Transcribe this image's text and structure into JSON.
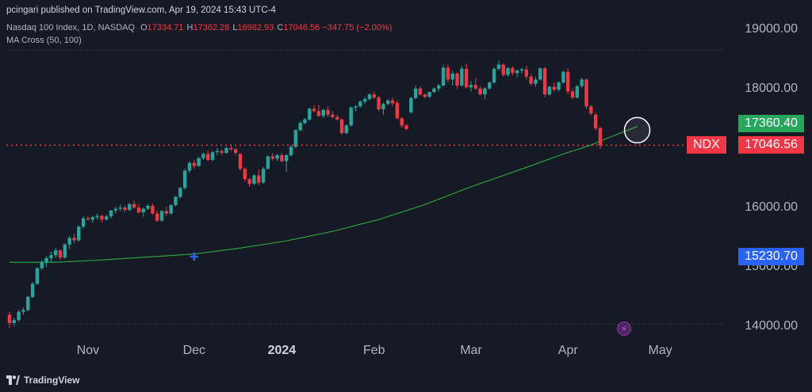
{
  "header": {
    "publisher": "pcingari published on TradingView.com, Apr 19, 2024 15:43 UTC-4",
    "symbol_line": "Nasdaq 100 Index, 1D, NASDAQ",
    "ohlc": [
      {
        "label": "O",
        "value": "17334.71"
      },
      {
        "label": "H",
        "value": "17362.28"
      },
      {
        "label": "L",
        "value": "16982.93"
      },
      {
        "label": "C",
        "value": "17046.56"
      }
    ],
    "change": "−347.75 (−2.00%)",
    "indicator": "MA Cross (50, 100)"
  },
  "price_tags": {
    "ma_value": "17360.40",
    "ma_color": "#26A65B",
    "last_value": "17046.56",
    "last_color": "#F23645",
    "symbol": "NDX",
    "ma_low_value": "15230.70",
    "ma_low_color": "#2962FF"
  },
  "footer": {
    "brand": "TradingView"
  },
  "icons": {
    "alert": "lightning-icon",
    "logo": "tradingview-logo-icon",
    "cross": "ma-cross-marker-icon"
  },
  "colors": {
    "up": "#26A69A",
    "down": "#F23645",
    "ma": "#2E9D3F",
    "grid": "#2A2E39",
    "bg": "#161A25"
  },
  "chart_data": {
    "type": "candlestick",
    "y_axis": {
      "range": [
        13900,
        19300
      ],
      "ticks": [
        14000,
        15000,
        16000,
        17000,
        18000,
        19000
      ],
      "tick_labels": [
        "14000.00",
        "15000.00",
        "16000.00",
        "17000.00",
        "18000.00",
        "19000.00"
      ]
    },
    "x_axis": {
      "tick_labels": [
        {
          "label": "Nov",
          "bold": false
        },
        {
          "label": "Dec",
          "bold": false
        },
        {
          "label": "2024",
          "bold": true
        },
        {
          "label": "Feb",
          "bold": false
        },
        {
          "label": "Mar",
          "bold": false
        },
        {
          "label": "Apr",
          "bold": false
        },
        {
          "label": "May",
          "bold": false
        }
      ],
      "tick_bar_index": [
        17,
        40,
        59,
        79,
        100,
        121,
        141
      ]
    },
    "last_price_line": 17046.56,
    "candles": [
      [
        14200,
        14250,
        13980,
        14060
      ],
      [
        14060,
        14150,
        14000,
        14110
      ],
      [
        14110,
        14280,
        14080,
        14250
      ],
      [
        14250,
        14320,
        14200,
        14280
      ],
      [
        14280,
        14520,
        14260,
        14500
      ],
      [
        14500,
        14750,
        14480,
        14720
      ],
      [
        14720,
        15000,
        14700,
        14980
      ],
      [
        14980,
        15120,
        14950,
        15080
      ],
      [
        15080,
        15180,
        15000,
        15150
      ],
      [
        15150,
        15260,
        15080,
        15200
      ],
      [
        15200,
        15320,
        15150,
        15280
      ],
      [
        15280,
        15300,
        15120,
        15160
      ],
      [
        15160,
        15400,
        15140,
        15380
      ],
      [
        15380,
        15520,
        15300,
        15490
      ],
      [
        15490,
        15560,
        15400,
        15450
      ],
      [
        15450,
        15700,
        15430,
        15680
      ],
      [
        15680,
        15850,
        15650,
        15820
      ],
      [
        15820,
        15860,
        15780,
        15800
      ],
      [
        15800,
        15860,
        15750,
        15840
      ],
      [
        15840,
        15900,
        15800,
        15860
      ],
      [
        15860,
        15880,
        15750,
        15800
      ],
      [
        15800,
        15880,
        15780,
        15850
      ],
      [
        15850,
        15960,
        15820,
        15950
      ],
      [
        15950,
        16020,
        15900,
        15980
      ],
      [
        15980,
        16050,
        15940,
        16000
      ],
      [
        16000,
        16040,
        15920,
        15960
      ],
      [
        15960,
        16080,
        15940,
        16060
      ],
      [
        16060,
        16120,
        15980,
        16000
      ],
      [
        16000,
        16060,
        15900,
        15920
      ],
      [
        15920,
        16000,
        15850,
        15980
      ],
      [
        15980,
        16060,
        15960,
        16030
      ],
      [
        16030,
        16070,
        15880,
        15900
      ],
      [
        15900,
        15950,
        15760,
        15780
      ],
      [
        15780,
        15960,
        15760,
        15940
      ],
      [
        15940,
        16020,
        15860,
        15900
      ],
      [
        15900,
        16060,
        15880,
        16040
      ],
      [
        16040,
        16200,
        16020,
        16180
      ],
      [
        16180,
        16350,
        16150,
        16330
      ],
      [
        16330,
        16650,
        16300,
        16620
      ],
      [
        16620,
        16780,
        16580,
        16750
      ],
      [
        16750,
        16800,
        16650,
        16700
      ],
      [
        16700,
        16850,
        16680,
        16830
      ],
      [
        16830,
        16920,
        16800,
        16900
      ],
      [
        16900,
        16960,
        16780,
        16800
      ],
      [
        16800,
        16950,
        16780,
        16930
      ],
      [
        16930,
        17000,
        16880,
        16950
      ],
      [
        16950,
        16980,
        16880,
        16920
      ],
      [
        16920,
        17020,
        16900,
        17000
      ],
      [
        17000,
        17060,
        16950,
        16980
      ],
      [
        16980,
        17000,
        16880,
        16920
      ],
      [
        16900,
        16920,
        16620,
        16650
      ],
      [
        16650,
        16680,
        16440,
        16480
      ],
      [
        16480,
        16500,
        16350,
        16400
      ],
      [
        16400,
        16560,
        16380,
        16540
      ],
      [
        16540,
        16640,
        16380,
        16420
      ],
      [
        16420,
        16680,
        16400,
        16650
      ],
      [
        16650,
        16880,
        16640,
        16860
      ],
      [
        16860,
        16920,
        16780,
        16820
      ],
      [
        16820,
        16900,
        16780,
        16880
      ],
      [
        16880,
        16920,
        16760,
        16780
      ],
      [
        16780,
        16900,
        16600,
        16880
      ],
      [
        16880,
        17050,
        16860,
        17020
      ],
      [
        17020,
        17320,
        17000,
        17300
      ],
      [
        17300,
        17450,
        17280,
        17420
      ],
      [
        17420,
        17500,
        17400,
        17480
      ],
      [
        17480,
        17680,
        17460,
        17660
      ],
      [
        17660,
        17720,
        17600,
        17620
      ],
      [
        17620,
        17720,
        17520,
        17540
      ],
      [
        17540,
        17660,
        17500,
        17640
      ],
      [
        17640,
        17700,
        17520,
        17560
      ],
      [
        17560,
        17620,
        17500,
        17520
      ],
      [
        17520,
        17560,
        17460,
        17480
      ],
      [
        17480,
        17500,
        17220,
        17250
      ],
      [
        17250,
        17400,
        17230,
        17380
      ],
      [
        17380,
        17700,
        17360,
        17680
      ],
      [
        17680,
        17720,
        17620,
        17700
      ],
      [
        17700,
        17800,
        17680,
        17780
      ],
      [
        17780,
        17860,
        17740,
        17820
      ],
      [
        17820,
        17920,
        17800,
        17900
      ],
      [
        17900,
        17950,
        17820,
        17850
      ],
      [
        17850,
        17880,
        17620,
        17650
      ],
      [
        17650,
        17760,
        17560,
        17740
      ],
      [
        17740,
        17820,
        17720,
        17800
      ],
      [
        17800,
        17850,
        17700,
        17750
      ],
      [
        17760,
        17800,
        17480,
        17500
      ],
      [
        17500,
        17520,
        17340,
        17380
      ],
      [
        17380,
        17400,
        17300,
        17320
      ],
      [
        17600,
        17860,
        17580,
        17840
      ],
      [
        17840,
        18050,
        17820,
        18000
      ],
      [
        18000,
        18040,
        17880,
        17900
      ],
      [
        17900,
        17920,
        17830,
        17860
      ],
      [
        17860,
        17950,
        17840,
        17940
      ],
      [
        17940,
        18020,
        17920,
        18000
      ],
      [
        18000,
        18080,
        17950,
        18050
      ],
      [
        18050,
        18400,
        18030,
        18350
      ],
      [
        18350,
        18400,
        18100,
        18150
      ],
      [
        18150,
        18300,
        18050,
        18250
      ],
      [
        18250,
        18280,
        18000,
        18050
      ],
      [
        18050,
        18380,
        18030,
        18330
      ],
      [
        18330,
        18420,
        18000,
        18020
      ],
      [
        18020,
        18120,
        17950,
        18060
      ],
      [
        18060,
        18180,
        17980,
        18000
      ],
      [
        18000,
        18040,
        17880,
        17900
      ],
      [
        17900,
        18020,
        17820,
        18000
      ],
      [
        18000,
        18120,
        17980,
        18100
      ],
      [
        18100,
        18360,
        18080,
        18330
      ],
      [
        18330,
        18470,
        18300,
        18400
      ],
      [
        18400,
        18420,
        18200,
        18230
      ],
      [
        18230,
        18360,
        18200,
        18340
      ],
      [
        18340,
        18370,
        18220,
        18260
      ],
      [
        18260,
        18320,
        18180,
        18300
      ],
      [
        18300,
        18350,
        18250,
        18320
      ],
      [
        18320,
        18380,
        18150,
        18200
      ],
      [
        18200,
        18250,
        18050,
        18080
      ],
      [
        18080,
        18200,
        18030,
        18150
      ],
      [
        18150,
        18350,
        18130,
        18340
      ],
      [
        18340,
        18360,
        17850,
        17900
      ],
      [
        17900,
        18050,
        17880,
        18030
      ],
      [
        18030,
        18100,
        17950,
        17980
      ],
      [
        17980,
        18120,
        17950,
        18100
      ],
      [
        18100,
        18300,
        18080,
        18280
      ],
      [
        18280,
        18340,
        17900,
        17950
      ],
      [
        17950,
        18000,
        17820,
        17850
      ],
      [
        17850,
        18060,
        17830,
        18040
      ],
      [
        18040,
        18180,
        18000,
        18150
      ],
      [
        18150,
        18170,
        17650,
        17700
      ],
      [
        17700,
        17720,
        17550,
        17580
      ],
      [
        17560,
        17600,
        17300,
        17330
      ],
      [
        17334.71,
        17362.28,
        16982.93,
        17046.56
      ]
    ],
    "series": [
      {
        "name": "MA Cross (50, 100)",
        "points": [
          [
            0,
            15080
          ],
          [
            10,
            15080
          ],
          [
            20,
            15120
          ],
          [
            30,
            15170
          ],
          [
            40,
            15220
          ],
          [
            50,
            15320
          ],
          [
            60,
            15440
          ],
          [
            70,
            15600
          ],
          [
            80,
            15800
          ],
          [
            90,
            16050
          ],
          [
            100,
            16350
          ],
          [
            110,
            16620
          ],
          [
            120,
            16900
          ],
          [
            126,
            17050
          ],
          [
            130,
            17180
          ],
          [
            136,
            17360.4
          ]
        ]
      }
    ],
    "ma_cross_marker": {
      "bar": 40,
      "value": 15230.7
    },
    "highlight_circle": {
      "bar": 136,
      "value": 17300
    }
  }
}
